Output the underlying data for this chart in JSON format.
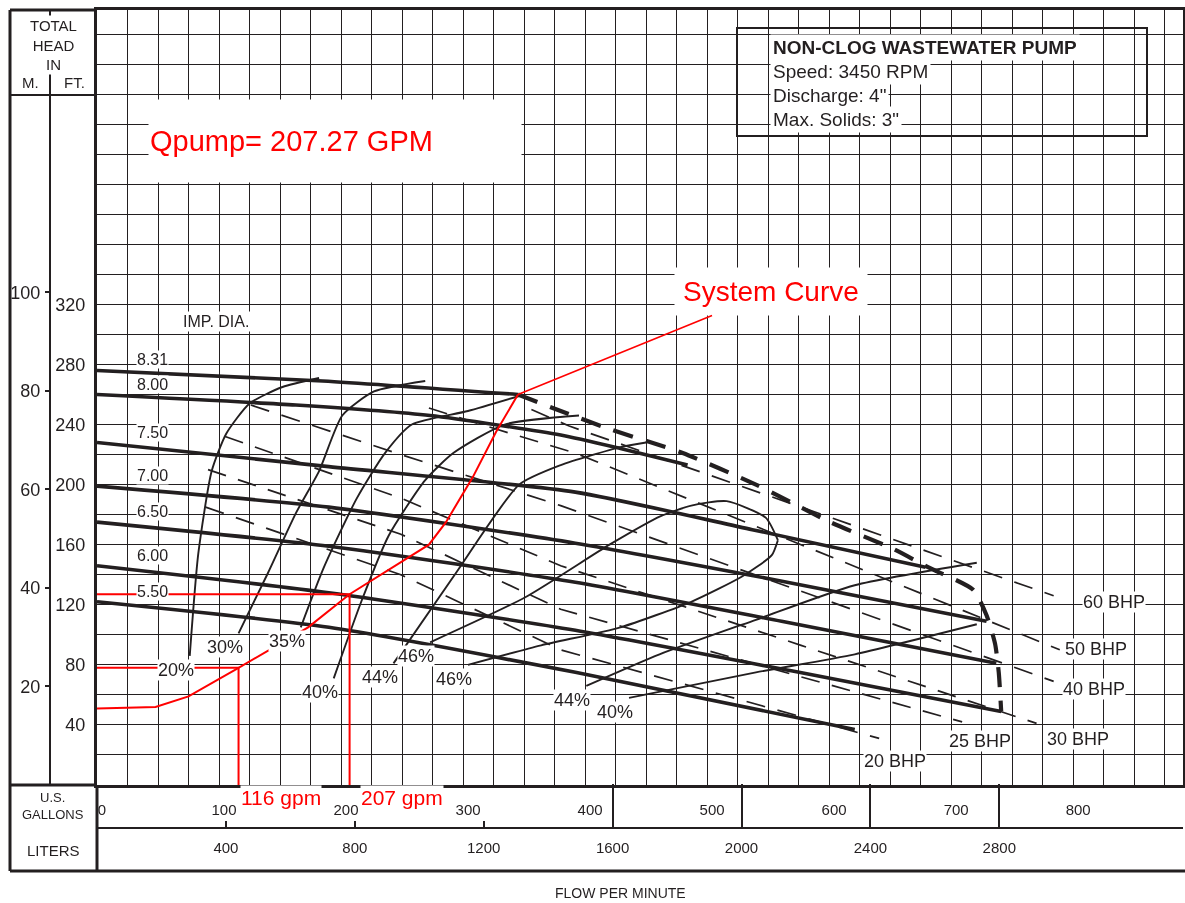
{
  "chart_data": {
    "type": "line",
    "title": "NON-CLOG WASTEWATER PUMP",
    "subtitle": "Speed: 3450 RPM\nDischarge: 4\"\nMax. Solids: 3\"",
    "xlabel": "U.S. GALLONS",
    "x2label": "LITERS",
    "ylabel": "FT.",
    "y2label": "M.",
    "annotations": [
      "TOTAL HEAD IN",
      "FLOW PER MINUTE",
      "IMP. DIA.",
      "Qpump= 207.27 GPM",
      {
        "text": "System Curve",
        "x": 345,
        "y": 260
      },
      {
        "text": "116 gpm",
        "x": 116,
        "y": 0
      },
      {
        "text": "207 gpm",
        "x": 207,
        "y": 0
      }
    ],
    "xlim": [
      0,
      890
    ],
    "xticks": [
      0,
      100,
      200,
      300,
      400,
      500,
      600,
      700,
      800
    ],
    "x2lim": [
      0,
      3370
    ],
    "x2ticks": [
      400,
      800,
      1200,
      1600,
      2000,
      2400,
      2800
    ],
    "ylim": [
      0,
      516
    ],
    "yticks": [
      40,
      80,
      120,
      160,
      200,
      240,
      280,
      320
    ],
    "y2lim": [
      0,
      157.3
    ],
    "y2ticks": [
      20,
      40,
      60,
      80,
      100
    ],
    "grid": true,
    "legend": false,
    "series": [
      {
        "name": "8.31",
        "color": "#231f20",
        "x": [
          0,
          185,
          345
        ],
        "values": [
          276,
          269,
          260
        ]
      },
      {
        "name": "8.00",
        "color": "#231f20",
        "x": [
          0,
          163,
          273,
          380,
          429,
          484
        ],
        "values": [
          260,
          253,
          246,
          233,
          224,
          213
        ]
      },
      {
        "name": "7.50",
        "color": "#231f20",
        "x": [
          0,
          190,
          392,
          537,
          679
        ],
        "values": [
          228,
          212,
          195,
          170,
          145
        ]
      },
      {
        "name": "7.00",
        "color": "#231f20",
        "x": [
          0,
          190,
          392,
          553,
          729
        ],
        "values": [
          199,
          185,
          161,
          137,
          109
        ]
      },
      {
        "name": "6.50",
        "color": "#231f20",
        "x": [
          0,
          190,
          392,
          561,
          737
        ],
        "values": [
          175,
          159,
          135,
          109,
          81
        ]
      },
      {
        "name": "6.00",
        "color": "#231f20",
        "x": [
          0,
          190,
          392,
          569,
          741
        ],
        "values": [
          146,
          128,
          103,
          76,
          49
        ]
      },
      {
        "name": "5.50",
        "color": "#231f20",
        "x": [
          0,
          190,
          392,
          621
        ],
        "values": [
          122,
          105,
          75,
          37
        ]
      },
      {
        "line_style": "dashed",
        "color": "#231f20",
        "x": [
          345,
          380,
          420,
          480,
          540,
          601,
          653,
          681,
          718,
          729,
          736,
          739,
          741
        ],
        "values": [
          260,
          249,
          237,
          221,
          200,
          175,
          157,
          145,
          130,
          113,
          94,
          75,
          49
        ]
      },
      {
        "name": "20%",
        "color": "#231f20",
        "x": [
          76,
          83,
          94,
          106,
          125,
          152,
          182
        ],
        "values": [
          86,
          154,
          209,
          234,
          254,
          265,
          271
        ]
      },
      {
        "name": "30%",
        "color": "#231f20",
        "x": [
          116,
          140,
          163,
          182,
          201,
          227,
          269
        ],
        "values": [
          101,
          141,
          181,
          209,
          246,
          262,
          269
        ]
      },
      {
        "name": "35%",
        "color": "#231f20",
        "x": [
          167,
          186,
          213,
          236,
          258,
          304,
          346
        ],
        "values": [
          105,
          145,
          191,
          221,
          240,
          249,
          259
        ]
      },
      {
        "name": "40%",
        "color": "#231f20",
        "x": [
          194,
          217,
          239,
          269,
          292,
          334,
          395
        ],
        "values": [
          71,
          123,
          166,
          203,
          221,
          240,
          246
        ]
      },
      {
        "name": "44%",
        "color": "#231f20",
        "x": [
          243,
          294,
          346,
          380,
          429,
          450
        ],
        "values": [
          81,
          141,
          200,
          213,
          225,
          228
        ]
      },
      {
        "name": "46%",
        "color": "#231f20",
        "x": [
          273,
          351,
          420,
          462,
          487,
          516,
          548,
          558
        ],
        "values": [
          95,
          125,
          160,
          179,
          186,
          189,
          178,
          163
        ]
      },
      {
        "name": "46%",
        "color": "#231f20",
        "x": [
          304,
          364,
          429,
          487,
          529,
          553,
          558
        ],
        "values": [
          80,
          93,
          105,
          122,
          139,
          153,
          163
        ]
      },
      {
        "name": "44%",
        "color": "#231f20",
        "x": [
          401,
          461,
          540,
          621,
          721
        ],
        "values": [
          66,
          87,
          110,
          133,
          148
        ]
      },
      {
        "name": "40%",
        "color": "#231f20",
        "x": [
          436,
          540,
          621,
          721
        ],
        "values": [
          58,
          75,
          87,
          107
        ]
      },
      {
        "name": "60 BHP",
        "line_style": "dashed",
        "color": "#231f20",
        "x": [
          356,
          387,
          577,
          784
        ],
        "values": [
          250,
          239,
          185,
          126
        ]
      },
      {
        "name": "50 BHP",
        "line_style": "dashed",
        "color": "#231f20",
        "x": [
          272,
          327,
          392,
          577,
          789
        ],
        "values": [
          251,
          237,
          221,
          160,
          90
        ]
      },
      {
        "name": "40 BHP",
        "line_style": "dashed",
        "color": "#231f20",
        "x": [
          126,
          249,
          380,
          577,
          784
        ],
        "values": [
          253,
          220,
          186,
          129,
          69
        ]
      },
      {
        "name": "30 BHP",
        "line_style": "dashed",
        "color": "#231f20",
        "x": [
          105,
          249,
          380,
          577,
          770
        ],
        "values": [
          232,
          191,
          146,
          93,
          41
        ]
      },
      {
        "name": "25 BHP",
        "line_style": "dashed",
        "color": "#231f20",
        "x": [
          91,
          249,
          380,
          577,
          709
        ],
        "values": [
          210,
          167,
          117,
          72,
          42
        ]
      },
      {
        "name": "20 BHP",
        "line_style": "dashed",
        "color": "#231f20",
        "x": [
          89,
          249,
          380,
          641
        ],
        "values": [
          185,
          140,
          90,
          31
        ]
      },
      {
        "color": "#ff0000",
        "x": [
          0,
          48,
          75,
          116,
          173,
          207,
          272,
          286,
          308,
          327,
          345
        ],
        "values": [
          51,
          52,
          59,
          78,
          105,
          127,
          160,
          175,
          205,
          235,
          260
        ]
      },
      {
        "color": "#ff0000",
        "x": [
          0,
          116,
          116
        ],
        "values": [
          78,
          78,
          0
        ]
      },
      {
        "color": "#ff0000",
        "x": [
          0,
          207,
          207
        ],
        "values": [
          127,
          127,
          0
        ]
      }
    ]
  }
}
